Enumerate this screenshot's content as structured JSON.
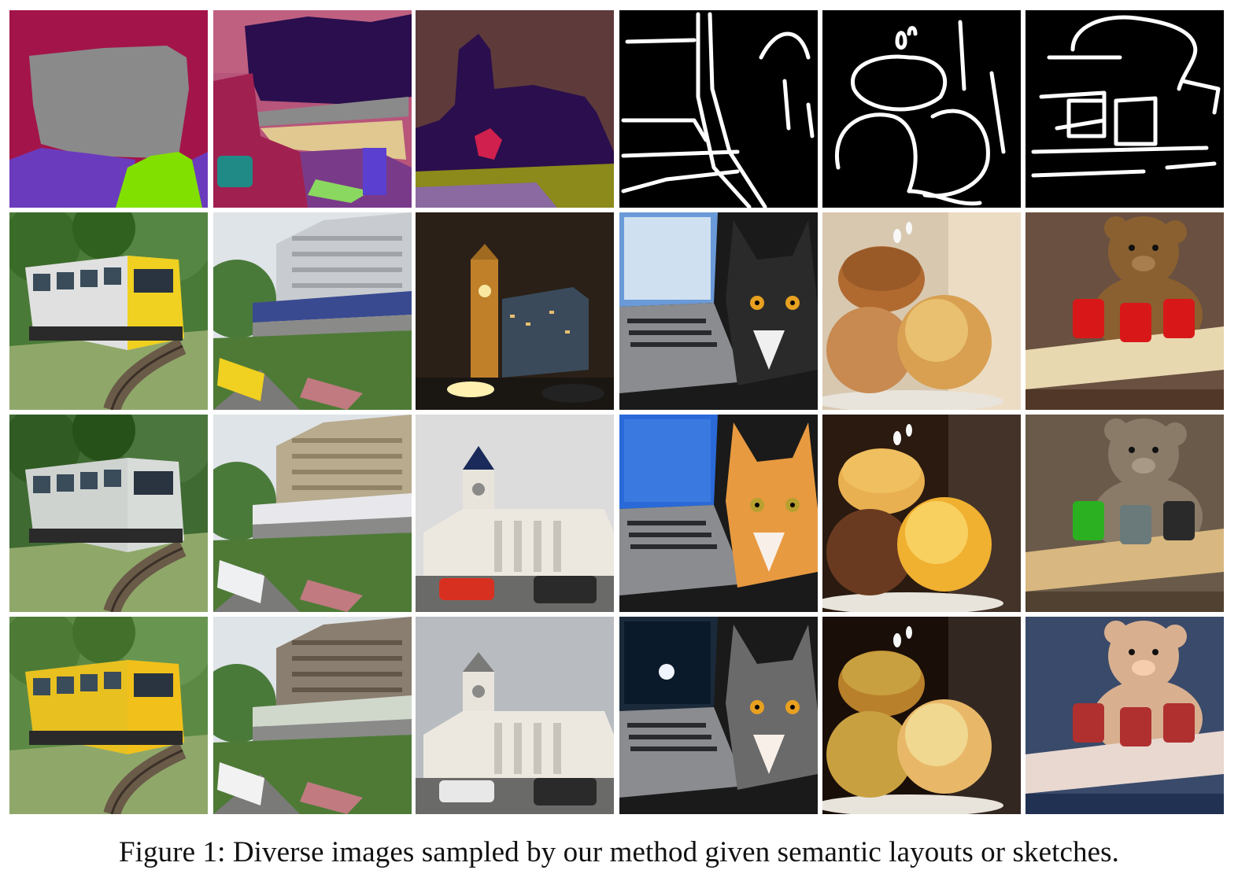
{
  "figure": {
    "caption": "Figure 1: Diverse images sampled by our method given semantic layouts or sketches."
  },
  "grid": {
    "rows": 4,
    "cols": 6,
    "columns": [
      {
        "subject": "train",
        "input": "semantic-layout"
      },
      {
        "subject": "train-viaduct",
        "input": "semantic-layout"
      },
      {
        "subject": "clock-tower",
        "input": "semantic-layout"
      },
      {
        "subject": "cat-laptop",
        "input": "sketch"
      },
      {
        "subject": "donuts",
        "input": "sketch"
      },
      {
        "subject": "teddy-bear",
        "input": "sketch"
      }
    ],
    "row_kinds": [
      "input",
      "sample",
      "sample",
      "sample"
    ]
  },
  "colors": {
    "layout_magenta": "#a3154a",
    "layout_gray": "#8a8a8a",
    "layout_purple": "#6b3bbd",
    "layout_green": "#82e000",
    "layout_navy": "#2a0e4d",
    "layout_brown": "#5e3a3b",
    "layout_olive": "#8b8a1a",
    "sketch_bg": "#000000",
    "sketch_line": "#ffffff"
  }
}
